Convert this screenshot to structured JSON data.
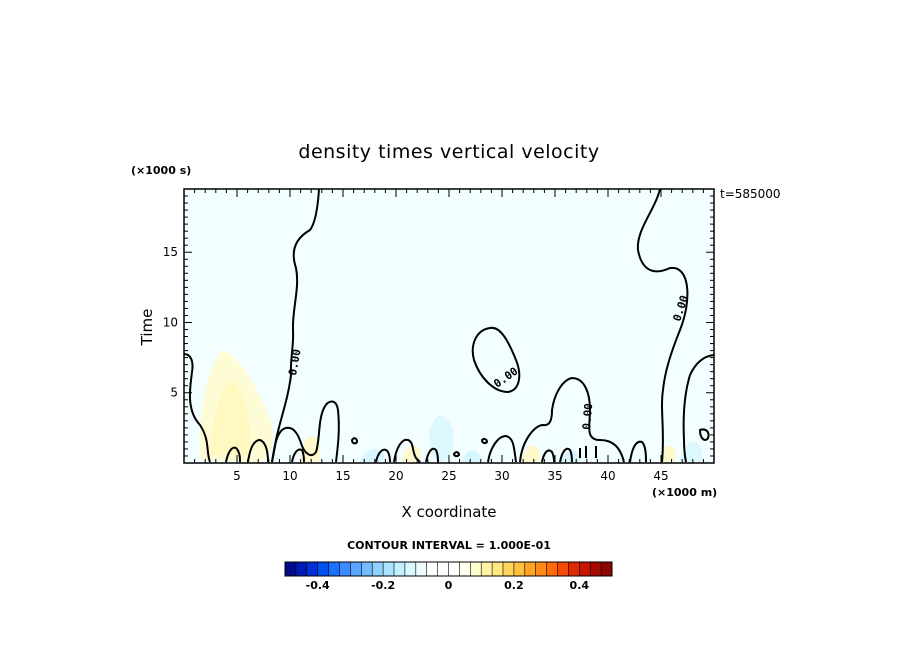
{
  "chart_data": {
    "type": "heatmap",
    "title": "density times vertical velocity",
    "xlabel": "X coordinate",
    "ylabel": "Time",
    "x_unit": "(×1000 m)",
    "y_unit": "(×1000 s)",
    "time_stamp": "t=585000",
    "xlim": [
      0,
      50
    ],
    "ylim": [
      0,
      19.5
    ],
    "x_ticks": [
      "5",
      "10",
      "15",
      "20",
      "25",
      "30",
      "35",
      "40",
      "45"
    ],
    "y_ticks": [
      "5",
      "10",
      "15"
    ],
    "contour_interval_label": "CONTOUR INTERVAL = 1.000E-01",
    "contour_label": "0.00",
    "colorbar": {
      "range": [
        -0.5,
        0.5
      ],
      "ticks": [
        "-0.4",
        "-0.2",
        "0",
        "0.2",
        "0.4"
      ],
      "colors": [
        "#000a8c",
        "#001bb5",
        "#0031d9",
        "#0050f0",
        "#1a70ff",
        "#3d8cff",
        "#5aa5ff",
        "#74bcff",
        "#8ed2ff",
        "#a8e4ff",
        "#c2f0ff",
        "#dcf8ff",
        "#eefcff",
        "#ffffff",
        "#ffffff",
        "#ffffff",
        "#fffff0",
        "#ffffcc",
        "#fff3a6",
        "#ffe680",
        "#ffd45c",
        "#ffbf3d",
        "#ffa524",
        "#ff8a14",
        "#ff6a0a",
        "#f54a05",
        "#e02a02",
        "#c71500",
        "#a80a00",
        "#8c0500"
      ]
    },
    "background_value_color": "#f2feff"
  }
}
